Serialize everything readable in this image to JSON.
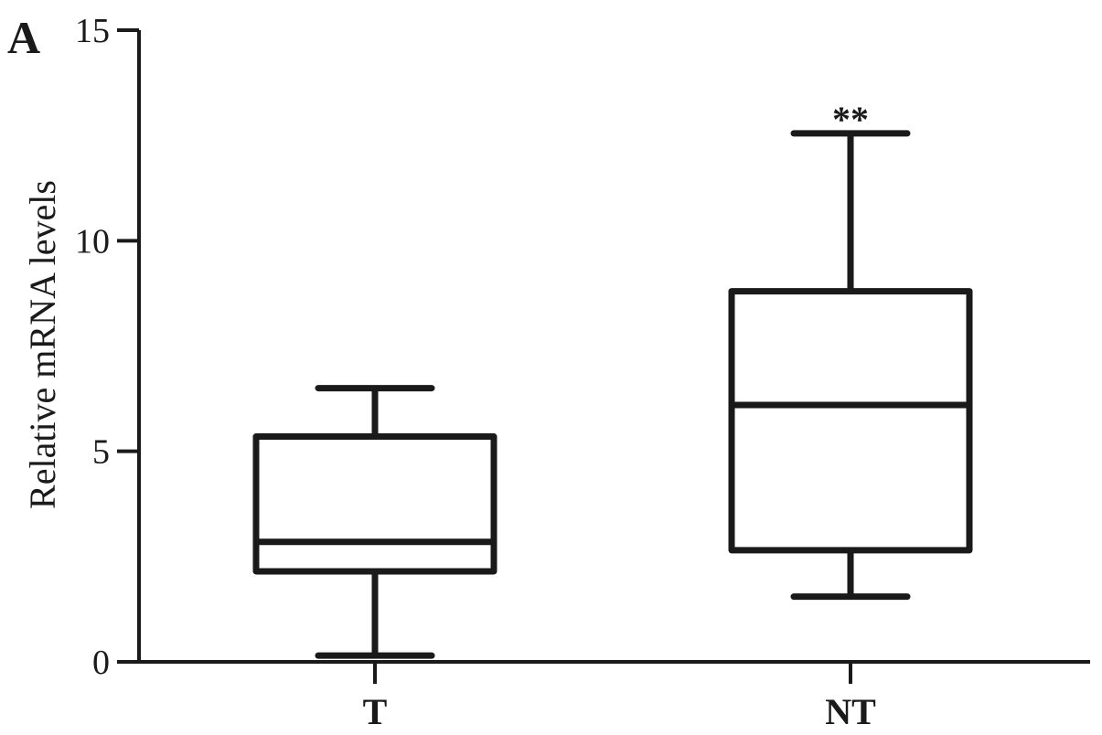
{
  "panel_label": "A",
  "chart_data": {
    "type": "box",
    "title": "",
    "xlabel": "",
    "ylabel": "Relative mRNA levels",
    "ylim": [
      0,
      15
    ],
    "yticks": [
      0,
      5,
      10,
      15
    ],
    "categories": [
      "T",
      "NT"
    ],
    "boxes": [
      {
        "category": "T",
        "min": 0.15,
        "q1": 2.15,
        "median": 2.85,
        "q3": 5.35,
        "max": 6.5,
        "annotation": ""
      },
      {
        "category": "NT",
        "min": 1.55,
        "q1": 2.65,
        "median": 6.1,
        "q3": 8.8,
        "max": 12.55,
        "annotation": "**"
      }
    ],
    "grid": false,
    "legend": "none",
    "color": "#1a1a1a"
  }
}
